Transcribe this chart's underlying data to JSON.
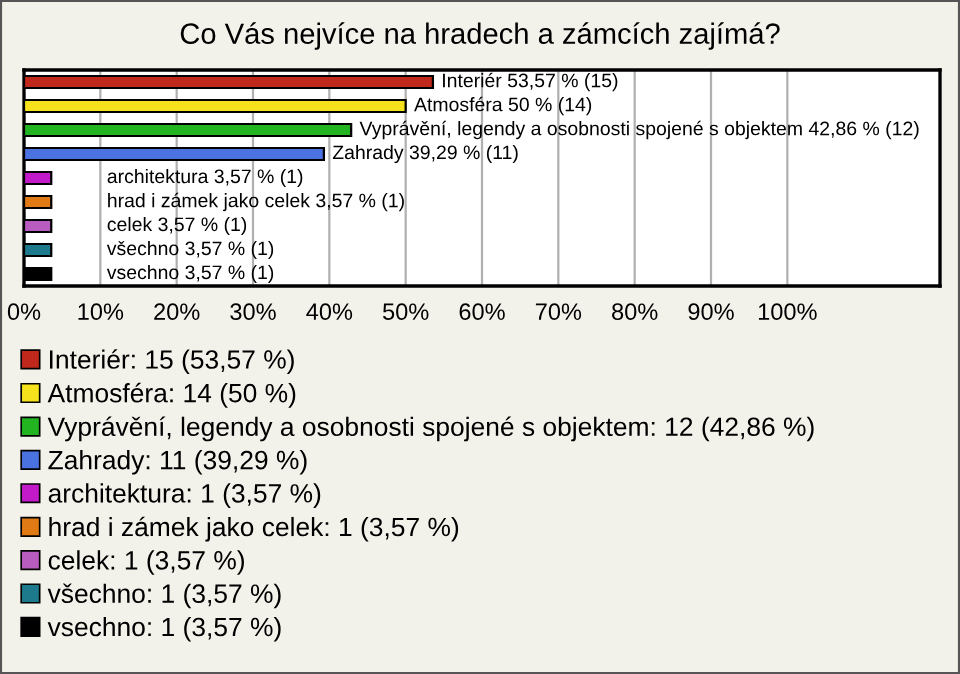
{
  "chart_data": {
    "type": "bar",
    "orientation": "horizontal",
    "title": "Co Vás nejvíce na hradech a zámcích zajímá?",
    "categories": [
      null,
      null,
      null,
      null,
      null,
      null,
      null,
      null,
      null
    ],
    "series": [
      {
        "name": "Interiér: 15 (53,57 %)",
        "color": "#c0281c",
        "values": [
          53.57,
          null,
          null,
          null,
          null,
          null,
          null,
          null,
          null
        ],
        "value_labels": [
          "Interiér 53,57 % (15)",
          null,
          null,
          null,
          null,
          null,
          null,
          null,
          null
        ]
      },
      {
        "name": "Atmosféra: 14 (50 %)",
        "color": "#f5e21c",
        "values": [
          null,
          50,
          null,
          null,
          null,
          null,
          null,
          null,
          null
        ],
        "value_labels": [
          null,
          "Atmosféra 50 % (14)",
          null,
          null,
          null,
          null,
          null,
          null,
          null
        ]
      },
      {
        "name": "Vyprávění, legendy a osobnosti spojené s objektem: 12 (42,86 %)",
        "color": "#22b421",
        "values": [
          null,
          null,
          42.86,
          null,
          null,
          null,
          null,
          null,
          null
        ],
        "value_labels": [
          null,
          null,
          "Vyprávění, legendy a osobnosti spojené s objektem 42,86 % (12)",
          null,
          null,
          null,
          null,
          null,
          null
        ]
      },
      {
        "name": "Zahrady: 11 (39,29 %)",
        "color": "#4a72e0",
        "values": [
          null,
          null,
          null,
          39.29,
          null,
          null,
          null,
          null,
          null
        ],
        "value_labels": [
          null,
          null,
          null,
          "Zahrady 39,29 % (11)",
          null,
          null,
          null,
          null,
          null
        ]
      },
      {
        "name": "architektura: 1 (3,57 %)",
        "color": "#c21ac8",
        "values": [
          null,
          null,
          null,
          null,
          3.57,
          null,
          null,
          null,
          null
        ],
        "value_labels": [
          null,
          null,
          null,
          null,
          "architektura 3,57 % (1)",
          null,
          null,
          null,
          null
        ]
      },
      {
        "name": "hrad i zámek jako celek: 1 (3,57 %)",
        "color": "#e07a14",
        "values": [
          null,
          null,
          null,
          null,
          null,
          3.57,
          null,
          null,
          null
        ],
        "value_labels": [
          null,
          null,
          null,
          null,
          null,
          "hrad i zámek jako celek 3,57 % (1)",
          null,
          null,
          null
        ]
      },
      {
        "name": "celek: 1 (3,57 %)",
        "color": "#b85cbf",
        "values": [
          null,
          null,
          null,
          null,
          null,
          null,
          3.57,
          null,
          null
        ],
        "value_labels": [
          null,
          null,
          null,
          null,
          null,
          null,
          "celek 3,57 % (1)",
          null,
          null
        ]
      },
      {
        "name": "všechno: 1 (3,57 %)",
        "color": "#1c7a8c",
        "values": [
          null,
          null,
          null,
          null,
          null,
          null,
          null,
          3.57,
          null
        ],
        "value_labels": [
          null,
          null,
          null,
          null,
          null,
          null,
          null,
          "všechno 3,57 % (1)",
          null
        ]
      },
      {
        "name": "vsechno: 1 (3,57 %)",
        "color": "#000000",
        "values": [
          null,
          null,
          null,
          null,
          null,
          null,
          null,
          null,
          3.57
        ],
        "value_labels": [
          null,
          null,
          null,
          null,
          null,
          null,
          null,
          null,
          "vsechno 3,57 % (1)"
        ]
      }
    ],
    "xlim": [
      0,
      120
    ],
    "xticks": [
      {
        "value": 0,
        "label": "0%"
      },
      {
        "value": 10,
        "label": "10%"
      },
      {
        "value": 20,
        "label": "20%"
      },
      {
        "value": 30,
        "label": "30%"
      },
      {
        "value": 40,
        "label": "40%"
      },
      {
        "value": 50,
        "label": "50%"
      },
      {
        "value": 60,
        "label": "60%"
      },
      {
        "value": 70,
        "label": "70%"
      },
      {
        "value": 80,
        "label": "80%"
      },
      {
        "value": 90,
        "label": "90%"
      },
      {
        "value": 100,
        "label": "100%"
      }
    ],
    "grid": "x",
    "legend": "bottom"
  }
}
